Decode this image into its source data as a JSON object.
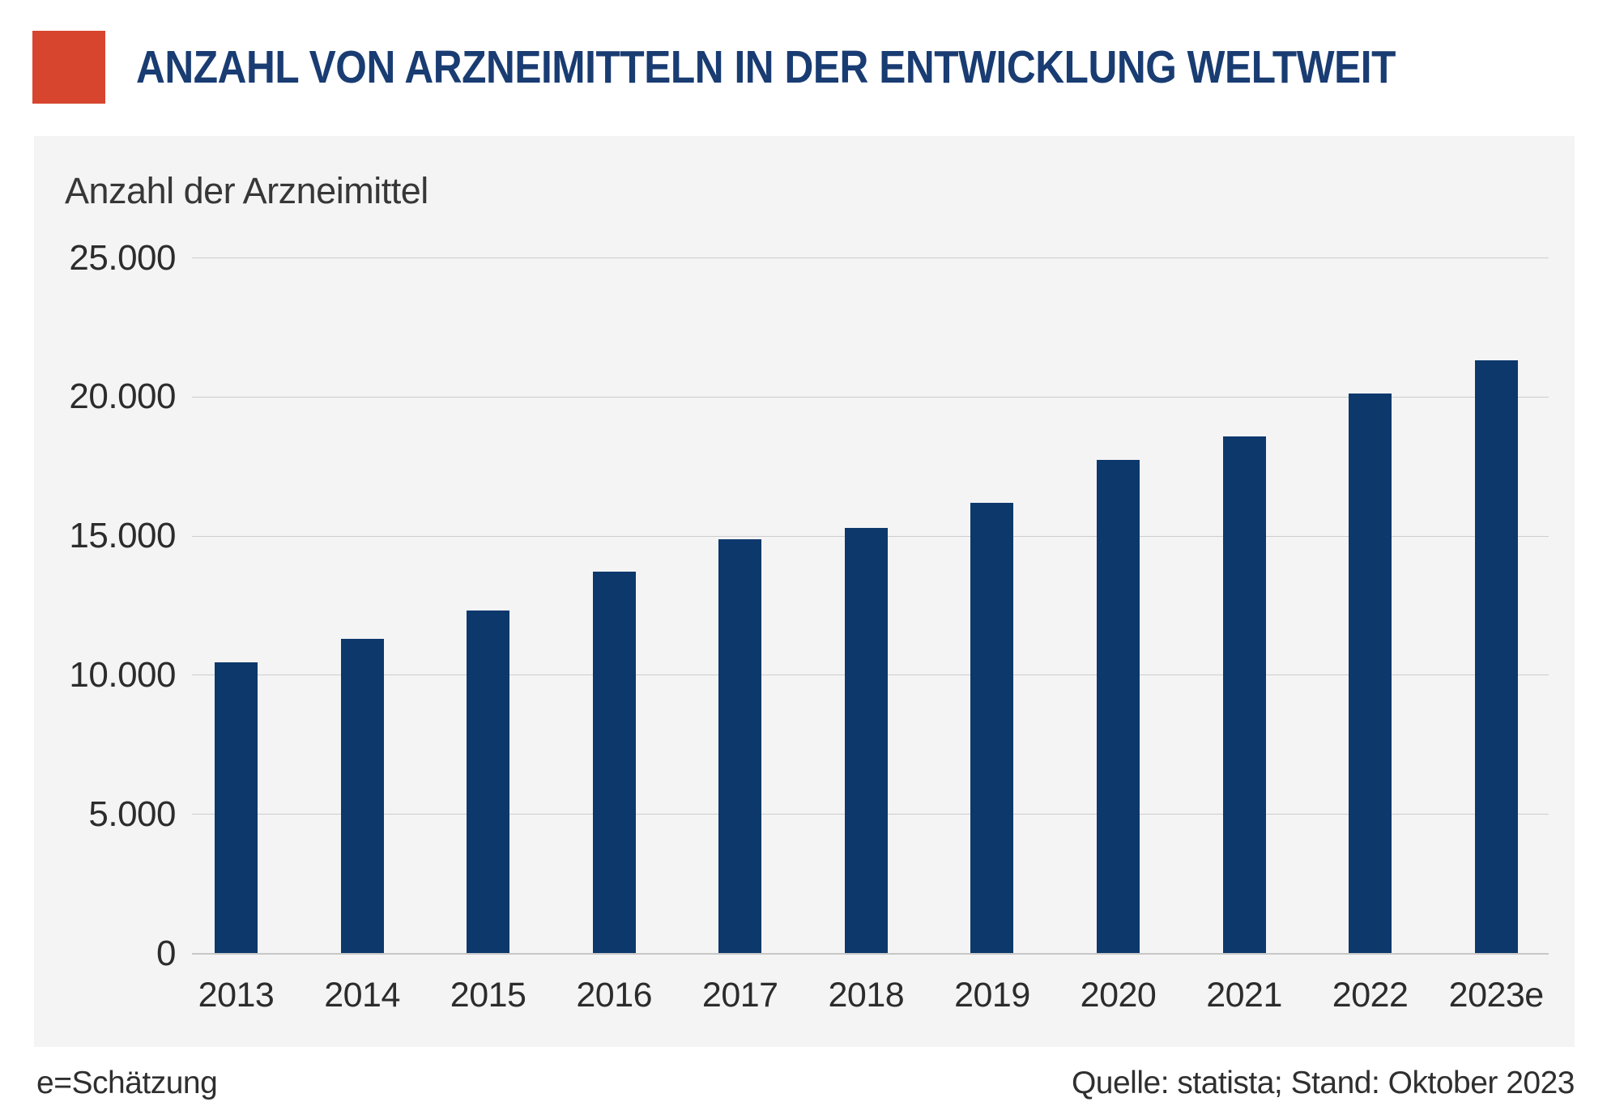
{
  "header": {
    "title": "ANZAHL VON ARZNEIMITTELN IN DER ENTWICKLUNG WELTWEIT"
  },
  "chart_data": {
    "type": "bar",
    "title": "Anzahl der Arzneimittel",
    "categories": [
      "2013",
      "2014",
      "2015",
      "2016",
      "2017",
      "2018",
      "2019",
      "2020",
      "2021",
      "2022",
      "2023e"
    ],
    "values": [
      10452,
      11307,
      12300,
      13718,
      14872,
      15267,
      16181,
      17737,
      18582,
      20109,
      21292
    ],
    "ylim": [
      0,
      25000
    ],
    "yticks": [
      {
        "value": 25000,
        "label": "25.000"
      },
      {
        "value": 20000,
        "label": "20.000"
      },
      {
        "value": 15000,
        "label": "15.000"
      },
      {
        "value": 10000,
        "label": "10.000"
      },
      {
        "value": 5000,
        "label": "5.000"
      },
      {
        "value": 0,
        "label": "0"
      }
    ],
    "grid": true,
    "legend_position": "none",
    "bar_color": "#0d386c",
    "panel_background": "#f4f4f5",
    "xlabel": "",
    "ylabel": ""
  },
  "footer": {
    "note": "e=Schätzung",
    "source": "Quelle: statista; Stand: Oktober 2023"
  },
  "colors": {
    "accent_red": "#d7452e",
    "title_blue": "#193c72",
    "gridline": "#cdcdcd"
  }
}
